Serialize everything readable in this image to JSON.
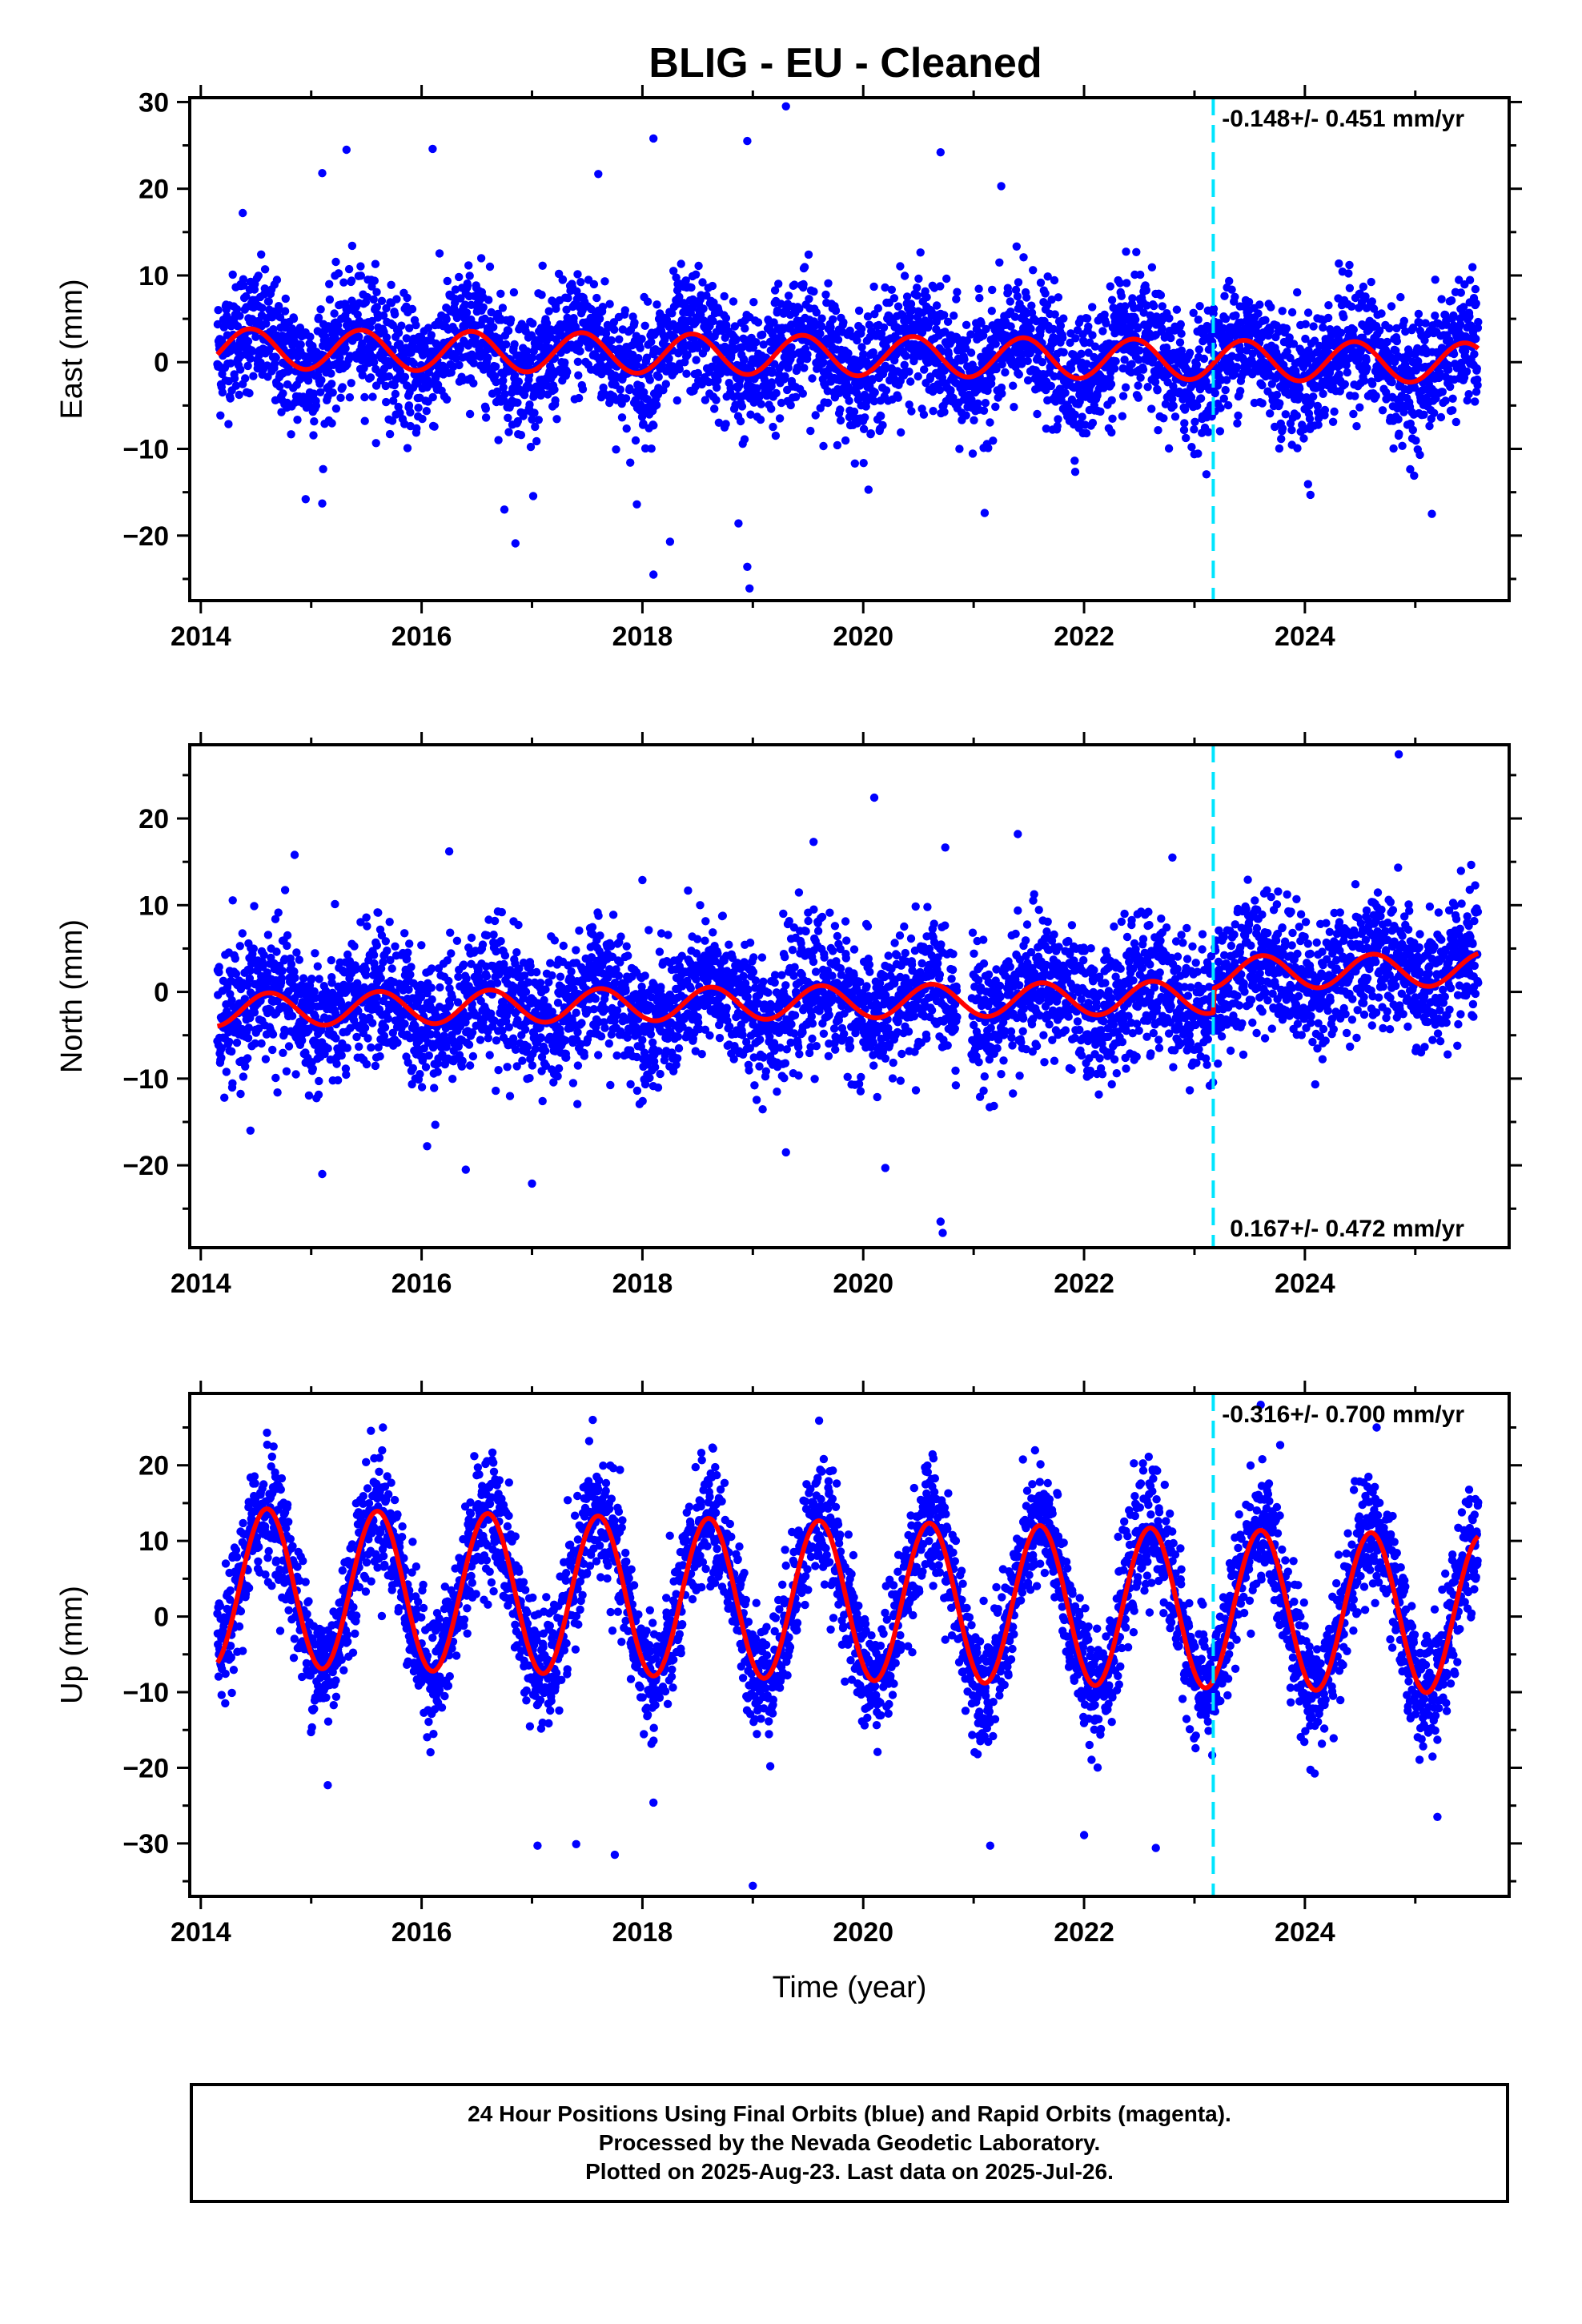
{
  "chart_data": {
    "title": "BLIG  - EU - Cleaned",
    "type": "scatter",
    "xlabel": "Time (year)",
    "xlim": [
      2013.9,
      2025.85
    ],
    "xticks": [
      2014,
      2016,
      2018,
      2020,
      2022,
      2024
    ],
    "offset_epoch": 2023.17,
    "offset_color": "#00e5ff",
    "point_color": "#0000ff",
    "model_color": "#ff0000",
    "data_start": 2014.15,
    "data_end": 2025.57,
    "panels": [
      {
        "component": "east",
        "ylabel": "East (mm)",
        "ylim": [
          -27.5,
          30.5
        ],
        "yticks": [
          30,
          20,
          10,
          0,
          -10,
          -20
        ],
        "rate_text": "-0.148+/- 0.451 mm/yr",
        "rate_position": "top-right",
        "model": {
          "offset": 0.8,
          "trend": -0.148,
          "amplitude": 2.3,
          "phase_peak": 0.45
        },
        "scatter_sd": 3.6,
        "outliers": [
          {
            "x": 2014.38,
            "y": 17.2
          },
          {
            "x": 2015.1,
            "y": 21.8
          },
          {
            "x": 2015.32,
            "y": 24.5
          },
          {
            "x": 2016.1,
            "y": 24.6
          },
          {
            "x": 2017.6,
            "y": 21.7
          },
          {
            "x": 2018.1,
            "y": 25.8
          },
          {
            "x": 2018.95,
            "y": 25.5
          },
          {
            "x": 2019.3,
            "y": 29.5
          },
          {
            "x": 2020.7,
            "y": 24.2
          },
          {
            "x": 2021.25,
            "y": 20.3
          },
          {
            "x": 2014.95,
            "y": -15.8
          },
          {
            "x": 2015.1,
            "y": -16.3
          },
          {
            "x": 2016.75,
            "y": -17.0
          },
          {
            "x": 2016.85,
            "y": -20.9
          },
          {
            "x": 2017.95,
            "y": -16.4
          },
          {
            "x": 2018.1,
            "y": -24.5
          },
          {
            "x": 2018.25,
            "y": -20.7
          },
          {
            "x": 2018.87,
            "y": -18.6
          },
          {
            "x": 2018.95,
            "y": -23.6
          },
          {
            "x": 2018.97,
            "y": -26.1
          },
          {
            "x": 2021.1,
            "y": -17.4
          },
          {
            "x": 2024.05,
            "y": -15.3
          },
          {
            "x": 2025.15,
            "y": -17.5
          }
        ]
      },
      {
        "component": "north",
        "ylabel": "North (mm)",
        "ylim": [
          -29.5,
          28.5
        ],
        "yticks": [
          20,
          10,
          0,
          -10,
          -20
        ],
        "rate_text": "0.167+/- 0.472 mm/yr",
        "rate_position": "bottom-right",
        "model": {
          "offset": -1.2,
          "trend": 0.167,
          "amplitude": 1.9,
          "phase_peak": 0.62,
          "step_at_offset": 2.8
        },
        "scatter_sd": 3.8,
        "outliers": [
          {
            "x": 2014.85,
            "y": 15.8
          },
          {
            "x": 2016.25,
            "y": 16.2
          },
          {
            "x": 2018.0,
            "y": 12.9
          },
          {
            "x": 2019.55,
            "y": 17.3
          },
          {
            "x": 2020.1,
            "y": 22.4
          },
          {
            "x": 2021.4,
            "y": 18.2
          },
          {
            "x": 2022.8,
            "y": 15.5
          },
          {
            "x": 2024.85,
            "y": 27.4
          },
          {
            "x": 2014.45,
            "y": -16.0
          },
          {
            "x": 2015.1,
            "y": -21.0
          },
          {
            "x": 2016.4,
            "y": -20.5
          },
          {
            "x": 2017.0,
            "y": -22.1
          },
          {
            "x": 2019.3,
            "y": -18.5
          },
          {
            "x": 2020.2,
            "y": -20.3
          },
          {
            "x": 2020.7,
            "y": -26.5
          },
          {
            "x": 2020.72,
            "y": -27.8
          },
          {
            "x": 2016.05,
            "y": -17.8
          }
        ]
      },
      {
        "component": "up",
        "ylabel": "Up (mm)",
        "ylim": [
          -37.0,
          29.5
        ],
        "yticks": [
          20,
          10,
          0,
          -10,
          -20,
          -30
        ],
        "rate_text": "-0.316+/- 0.700 mm/yr",
        "rate_position": "top-right",
        "model": {
          "offset": 2.2,
          "trend": -0.316,
          "amplitude": 10.5,
          "phase_peak": 0.6
        },
        "scatter_sd": 4.0,
        "outliers": [
          {
            "x": 2014.6,
            "y": 24.3
          },
          {
            "x": 2015.65,
            "y": 25.0
          },
          {
            "x": 2017.55,
            "y": 26.0
          },
          {
            "x": 2019.6,
            "y": 25.9
          },
          {
            "x": 2023.6,
            "y": 28.0
          },
          {
            "x": 2024.65,
            "y": 25.0
          },
          {
            "x": 2017.05,
            "y": -30.3
          },
          {
            "x": 2017.4,
            "y": -30.1
          },
          {
            "x": 2017.75,
            "y": -31.5
          },
          {
            "x": 2018.1,
            "y": -24.6
          },
          {
            "x": 2019.0,
            "y": -35.6
          },
          {
            "x": 2021.15,
            "y": -30.3
          },
          {
            "x": 2022.0,
            "y": -28.9
          },
          {
            "x": 2022.65,
            "y": -30.6
          },
          {
            "x": 2025.2,
            "y": -26.5
          },
          {
            "x": 2015.15,
            "y": -22.3
          }
        ]
      }
    ]
  },
  "footer": {
    "line1": "24 Hour Positions Using Final Orbits (blue) and Rapid Orbits (magenta).",
    "line2": "Processed by the Nevada Geodetic Laboratory.",
    "line3": "Plotted on 2025-Aug-23. Last data on 2025-Jul-26."
  }
}
